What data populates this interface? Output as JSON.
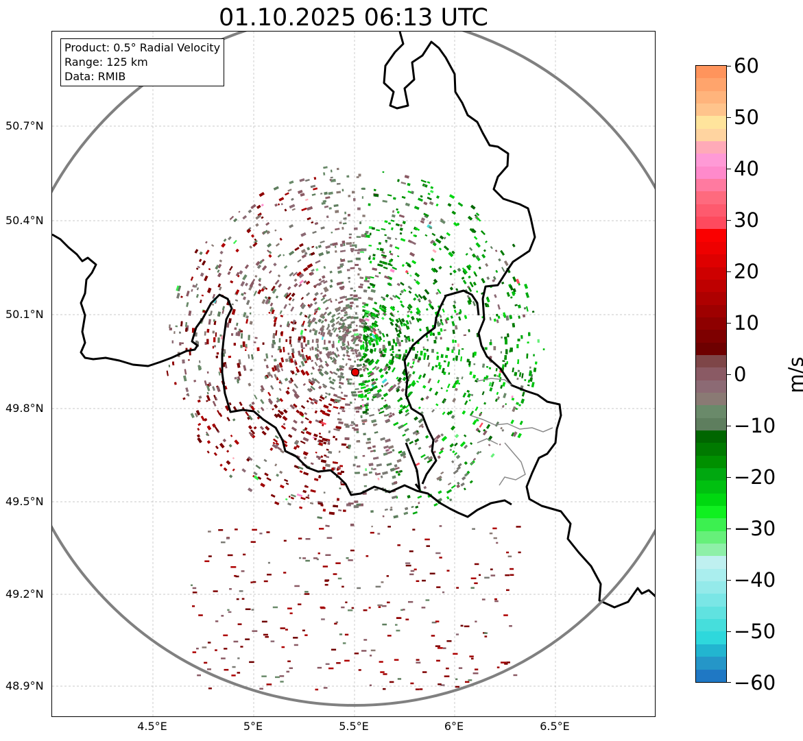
{
  "title": "01.10.2025 06:13 UTC",
  "info_box": {
    "product": "Product: 0.5° Radial Velocity",
    "range": "Range: 125 km",
    "data": "Data: RMIB"
  },
  "axes": {
    "lon_ticks": [
      "4.5°E",
      "5°E",
      "5.5°E",
      "6°E",
      "6.5°E"
    ],
    "lat_ticks": [
      "50.7°N",
      "50.4°N",
      "50.1°N",
      "49.8°N",
      "49.5°N",
      "49.2°N",
      "48.9°N"
    ]
  },
  "radar": {
    "site_marker_color": "#e60000",
    "range_ring_color": "#808080"
  },
  "colorbar": {
    "label": "m/s",
    "ticks": [
      "60",
      "50",
      "40",
      "30",
      "20",
      "10",
      "0",
      "−10",
      "−20",
      "−30",
      "−40",
      "−50",
      "−60"
    ],
    "min": -60,
    "max": 60
  }
}
